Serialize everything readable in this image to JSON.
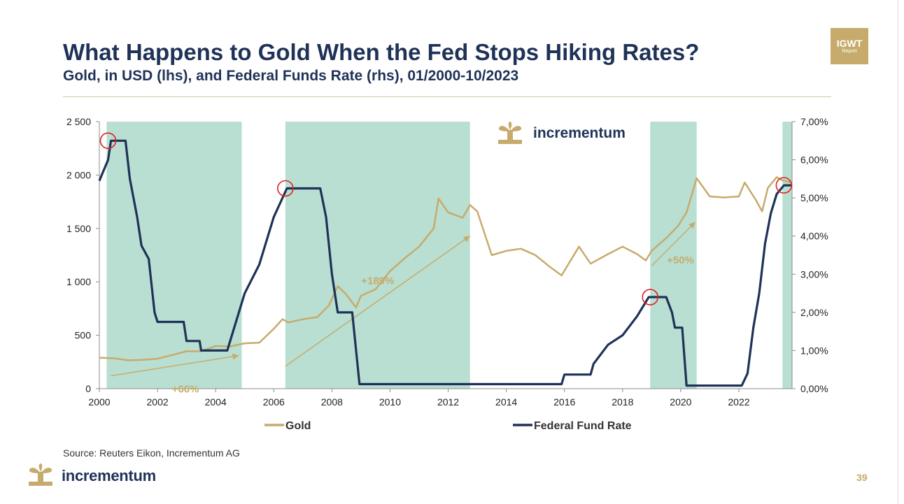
{
  "header": {
    "title": "What Happens to Gold When the Fed Stops Hiking Rates?",
    "subtitle": "Gold, in USD (lhs), and Federal Funds Rate (rhs), 01/2000-10/2023",
    "badge_line1": "IGWT",
    "badge_line2": "Report"
  },
  "footer": {
    "source": "Source: Reuters Eikon, Incrementum AG",
    "brand": "incrementum",
    "page_number": "39"
  },
  "colors": {
    "gold": "#c7ab6c",
    "fed": "#1f3257",
    "shade": "#b8dfd2",
    "circle": "#e02020",
    "brand": "#1f3257"
  },
  "chart_data": {
    "type": "line",
    "title": "",
    "brand_label": "incrementum",
    "x_range": [
      2000.0,
      2023.83
    ],
    "x_ticks": [
      "2000",
      "2002",
      "2004",
      "2006",
      "2008",
      "2010",
      "2012",
      "2014",
      "2016",
      "2018",
      "2020",
      "2022"
    ],
    "y_left": {
      "range": [
        0,
        2500
      ],
      "ticks": [
        "0",
        "500",
        "1 000",
        "1 500",
        "2 000",
        "2 500"
      ]
    },
    "y_right": {
      "range": [
        0,
        7
      ],
      "ticks": [
        "0,00%",
        "1,00%",
        "2,00%",
        "3,00%",
        "4,00%",
        "5,00%",
        "6,00%",
        "7,00%"
      ]
    },
    "legend": [
      "Gold",
      "Federal Fund Rate"
    ],
    "legend_position": "bottom",
    "series": [
      {
        "name": "Gold",
        "axis": "left",
        "points": [
          [
            2000.0,
            290
          ],
          [
            2000.5,
            285
          ],
          [
            2001.0,
            265
          ],
          [
            2001.5,
            270
          ],
          [
            2002.0,
            280
          ],
          [
            2002.5,
            315
          ],
          [
            2003.0,
            350
          ],
          [
            2003.5,
            350
          ],
          [
            2004.0,
            400
          ],
          [
            2004.5,
            395
          ],
          [
            2005.0,
            425
          ],
          [
            2005.5,
            430
          ],
          [
            2006.0,
            560
          ],
          [
            2006.3,
            650
          ],
          [
            2006.5,
            620
          ],
          [
            2007.0,
            650
          ],
          [
            2007.5,
            670
          ],
          [
            2007.9,
            780
          ],
          [
            2008.2,
            960
          ],
          [
            2008.5,
            880
          ],
          [
            2008.83,
            760
          ],
          [
            2009.0,
            870
          ],
          [
            2009.5,
            930
          ],
          [
            2010.0,
            1100
          ],
          [
            2010.5,
            1220
          ],
          [
            2011.0,
            1330
          ],
          [
            2011.5,
            1500
          ],
          [
            2011.67,
            1780
          ],
          [
            2012.0,
            1650
          ],
          [
            2012.5,
            1600
          ],
          [
            2012.75,
            1720
          ],
          [
            2013.0,
            1660
          ],
          [
            2013.5,
            1250
          ],
          [
            2014.0,
            1290
          ],
          [
            2014.5,
            1310
          ],
          [
            2015.0,
            1250
          ],
          [
            2015.5,
            1140
          ],
          [
            2015.9,
            1060
          ],
          [
            2016.5,
            1330
          ],
          [
            2016.9,
            1170
          ],
          [
            2017.5,
            1260
          ],
          [
            2018.0,
            1330
          ],
          [
            2018.5,
            1260
          ],
          [
            2018.8,
            1200
          ],
          [
            2019.0,
            1290
          ],
          [
            2019.5,
            1410
          ],
          [
            2019.9,
            1520
          ],
          [
            2020.2,
            1650
          ],
          [
            2020.55,
            1970
          ],
          [
            2021.0,
            1800
          ],
          [
            2021.5,
            1790
          ],
          [
            2022.0,
            1800
          ],
          [
            2022.2,
            1930
          ],
          [
            2022.6,
            1760
          ],
          [
            2022.8,
            1660
          ],
          [
            2023.0,
            1880
          ],
          [
            2023.3,
            1980
          ],
          [
            2023.5,
            1950
          ],
          [
            2023.83,
            1930
          ]
        ]
      },
      {
        "name": "Federal Fund Rate",
        "axis": "right",
        "points": [
          [
            2000.0,
            5.45
          ],
          [
            2000.3,
            6.0
          ],
          [
            2000.4,
            6.5
          ],
          [
            2000.9,
            6.5
          ],
          [
            2001.05,
            5.5
          ],
          [
            2001.3,
            4.5
          ],
          [
            2001.45,
            3.75
          ],
          [
            2001.7,
            3.4
          ],
          [
            2001.9,
            2.0
          ],
          [
            2002.0,
            1.75
          ],
          [
            2002.9,
            1.75
          ],
          [
            2003.0,
            1.25
          ],
          [
            2003.45,
            1.25
          ],
          [
            2003.5,
            1.0
          ],
          [
            2004.4,
            1.0
          ],
          [
            2004.6,
            1.5
          ],
          [
            2005.0,
            2.5
          ],
          [
            2005.5,
            3.25
          ],
          [
            2006.0,
            4.5
          ],
          [
            2006.45,
            5.25
          ],
          [
            2007.6,
            5.25
          ],
          [
            2007.8,
            4.5
          ],
          [
            2008.0,
            3.0
          ],
          [
            2008.2,
            2.0
          ],
          [
            2008.7,
            2.0
          ],
          [
            2008.95,
            0.12
          ],
          [
            2015.9,
            0.12
          ],
          [
            2016.0,
            0.37
          ],
          [
            2016.9,
            0.37
          ],
          [
            2017.0,
            0.65
          ],
          [
            2017.5,
            1.15
          ],
          [
            2018.0,
            1.4
          ],
          [
            2018.5,
            1.9
          ],
          [
            2018.9,
            2.4
          ],
          [
            2019.5,
            2.4
          ],
          [
            2019.7,
            2.0
          ],
          [
            2019.8,
            1.6
          ],
          [
            2020.05,
            1.6
          ],
          [
            2020.2,
            0.08
          ],
          [
            2022.1,
            0.08
          ],
          [
            2022.3,
            0.4
          ],
          [
            2022.5,
            1.6
          ],
          [
            2022.7,
            2.5
          ],
          [
            2022.9,
            3.8
          ],
          [
            2023.1,
            4.6
          ],
          [
            2023.3,
            5.1
          ],
          [
            2023.55,
            5.33
          ],
          [
            2023.83,
            5.33
          ]
        ]
      }
    ],
    "shaded_periods": [
      [
        2000.25,
        2004.9
      ],
      [
        2006.4,
        2012.75
      ],
      [
        2018.95,
        2020.55
      ],
      [
        2023.5,
        2023.83
      ]
    ],
    "markers": [
      {
        "x": 2000.3,
        "y": 6.5,
        "axis": "right"
      },
      {
        "x": 2006.4,
        "y": 5.25,
        "axis": "right"
      },
      {
        "x": 2018.95,
        "y": 2.4,
        "axis": "right"
      },
      {
        "x": 2023.55,
        "y": 5.33,
        "axis": "right"
      }
    ],
    "trend_arrows": [
      {
        "from": [
          2000.4,
          120
        ],
        "to": [
          2004.8,
          310
        ],
        "label": "+66%"
      },
      {
        "from": [
          2006.4,
          210
        ],
        "to": [
          2012.75,
          1430
        ],
        "label": "+189%"
      },
      {
        "from": [
          2019.0,
          1150
        ],
        "to": [
          2020.5,
          1560
        ],
        "label": "+50%"
      }
    ]
  }
}
